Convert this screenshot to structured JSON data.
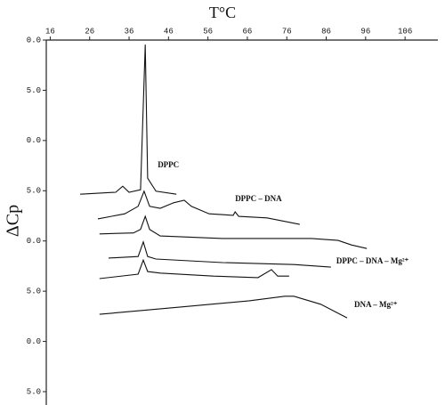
{
  "chart_data": {
    "type": "line",
    "title": "T°C",
    "y_label": "ΔCp",
    "xlim": [
      15,
      115
    ],
    "xticks": [
      16,
      26,
      36,
      46,
      56,
      66,
      76,
      86,
      96,
      106
    ],
    "ylim": [
      0,
      7
    ],
    "yticks": [
      {
        "value": 7,
        "label": "0.0"
      },
      {
        "value": 6,
        "label": "5.0"
      },
      {
        "value": 5,
        "label": "0.0"
      },
      {
        "value": 4,
        "label": "5.0"
      },
      {
        "value": 3,
        "label": "0.0"
      },
      {
        "value": 2,
        "label": "5.0"
      },
      {
        "value": 1,
        "label": "0.0"
      },
      {
        "value": 0,
        "label": "5.0"
      }
    ],
    "color": "#111111",
    "series": [
      {
        "name": "DPPC",
        "x": [
          23.6,
          32.6,
          34.4,
          36,
          38.9,
          40.1,
          40.7,
          42.8,
          48
        ],
        "values": [
          3.93,
          3.97,
          4.09,
          3.97,
          4.02,
          6.91,
          4.25,
          3.99,
          3.93
        ]
      },
      {
        "name": "DPPC – DNA",
        "x": [
          28.1,
          34.9,
          38.3,
          39.8,
          41.2,
          43.9,
          47.3,
          50,
          51.8,
          56.3,
          62.4,
          62.9,
          63.8,
          71,
          79.3
        ],
        "values": [
          3.44,
          3.54,
          3.69,
          3.99,
          3.69,
          3.65,
          3.76,
          3.81,
          3.69,
          3.54,
          3.51,
          3.58,
          3.49,
          3.46,
          3.33
        ]
      },
      {
        "x": [
          28.5,
          37.1,
          38.9,
          40.1,
          41.2,
          43.9,
          59.7,
          82.3,
          89,
          92.4,
          96.3
        ],
        "values": [
          3.14,
          3.16,
          3.23,
          3.49,
          3.23,
          3.1,
          3.05,
          3.05,
          3.01,
          2.92,
          2.85
        ]
      },
      {
        "name": "DPPC – DNA – Mg²⁺",
        "x": [
          30.8,
          38.3,
          39.6,
          40.7,
          42.8,
          59.7,
          77.8,
          87.2
        ],
        "values": [
          2.66,
          2.69,
          2.98,
          2.69,
          2.64,
          2.57,
          2.53,
          2.48
        ]
      },
      {
        "x": [
          28.5,
          38.3,
          39.6,
          40.7,
          43.9,
          57.4,
          68.7,
          72.1,
          73.7,
          76.6
        ],
        "values": [
          2.25,
          2.34,
          2.62,
          2.39,
          2.36,
          2.3,
          2.27,
          2.43,
          2.3,
          2.3
        ]
      },
      {
        "name": "DNA – Mg²⁺",
        "x": [
          28.5,
          48.4,
          66.5,
          75.5,
          77.8,
          84.6,
          91.3
        ],
        "values": [
          1.54,
          1.68,
          1.81,
          1.9,
          1.9,
          1.74,
          1.47
        ]
      }
    ]
  }
}
